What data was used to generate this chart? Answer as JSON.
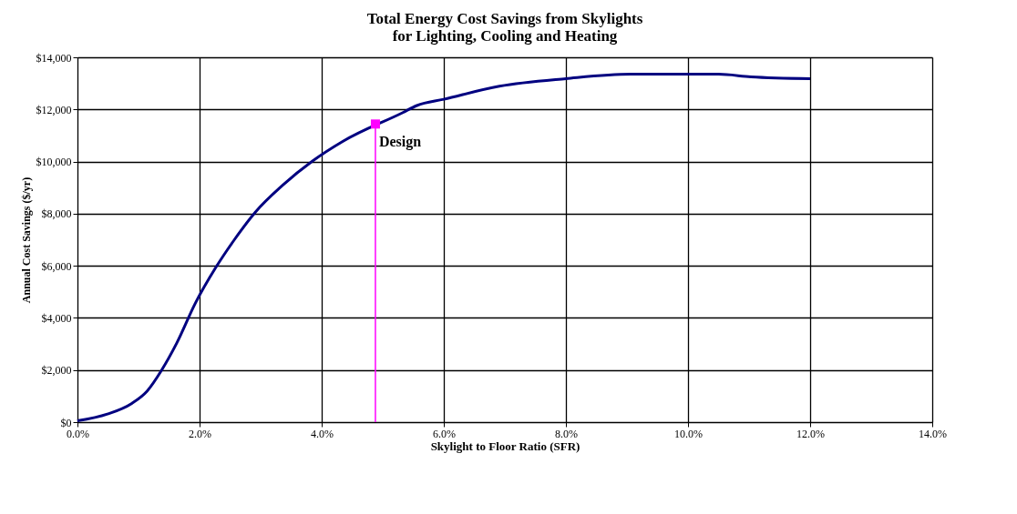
{
  "chart_data": {
    "type": "line",
    "title": [
      "Total Energy Cost Savings from Skylights",
      "for Lighting, Cooling and Heating"
    ],
    "xlabel": "Skylight to Floor Ratio (SFR)",
    "ylabel": "Annual Cost Savings ($/yr)",
    "series": [
      {
        "color": "#000080",
        "x": [
          0,
          0.49,
          0.89,
          1.14,
          1.38,
          1.63,
          1.93,
          2.27,
          2.57,
          2.91,
          3.36,
          3.85,
          4.35,
          5.33,
          5.56,
          6.0,
          6.91,
          8.0,
          9.06,
          10.0,
          10.5,
          11.03,
          12.0
        ],
        "values": [
          50,
          310,
          720,
          1190,
          2000,
          3050,
          4560,
          5950,
          7000,
          8050,
          9090,
          10020,
          10780,
          11880,
          12150,
          12390,
          12890,
          13180,
          13350,
          13350,
          13350,
          13250,
          13180
        ]
      },
      {
        "type": "line",
        "color": "#ff00ff",
        "x": [
          4.88,
          4.88
        ],
        "values": [
          0,
          11440
        ]
      },
      {
        "type": "scatter",
        "color": "#ff00ff",
        "marker": "square",
        "x": [
          4.88
        ],
        "values": [
          11440
        ]
      }
    ],
    "annotations": [
      {
        "text": "Design",
        "x": 4.88,
        "y": 11440
      }
    ],
    "xlim": [
      0,
      14
    ],
    "ylim": [
      0,
      14000
    ],
    "xticks": [
      {
        "value": 0,
        "label": "0.0%"
      },
      {
        "value": 2,
        "label": "2.0%"
      },
      {
        "value": 4,
        "label": "4.0%"
      },
      {
        "value": 6,
        "label": "6.0%"
      },
      {
        "value": 8,
        "label": "8.0%"
      },
      {
        "value": 10,
        "label": "10.0%"
      },
      {
        "value": 12,
        "label": "12.0%"
      },
      {
        "value": 14,
        "label": "14.0%"
      }
    ],
    "yticks": [
      {
        "value": 0,
        "label": "$0"
      },
      {
        "value": 2000,
        "label": "$2,000"
      },
      {
        "value": 4000,
        "label": "$4,000"
      },
      {
        "value": 6000,
        "label": "$6,000"
      },
      {
        "value": 8000,
        "label": "$8,000"
      },
      {
        "value": 10000,
        "label": "$10,000"
      },
      {
        "value": 12000,
        "label": "$12,000"
      },
      {
        "value": 14000,
        "label": "$14,000"
      }
    ],
    "grid": true,
    "marker": "none",
    "line_style": "solid"
  }
}
